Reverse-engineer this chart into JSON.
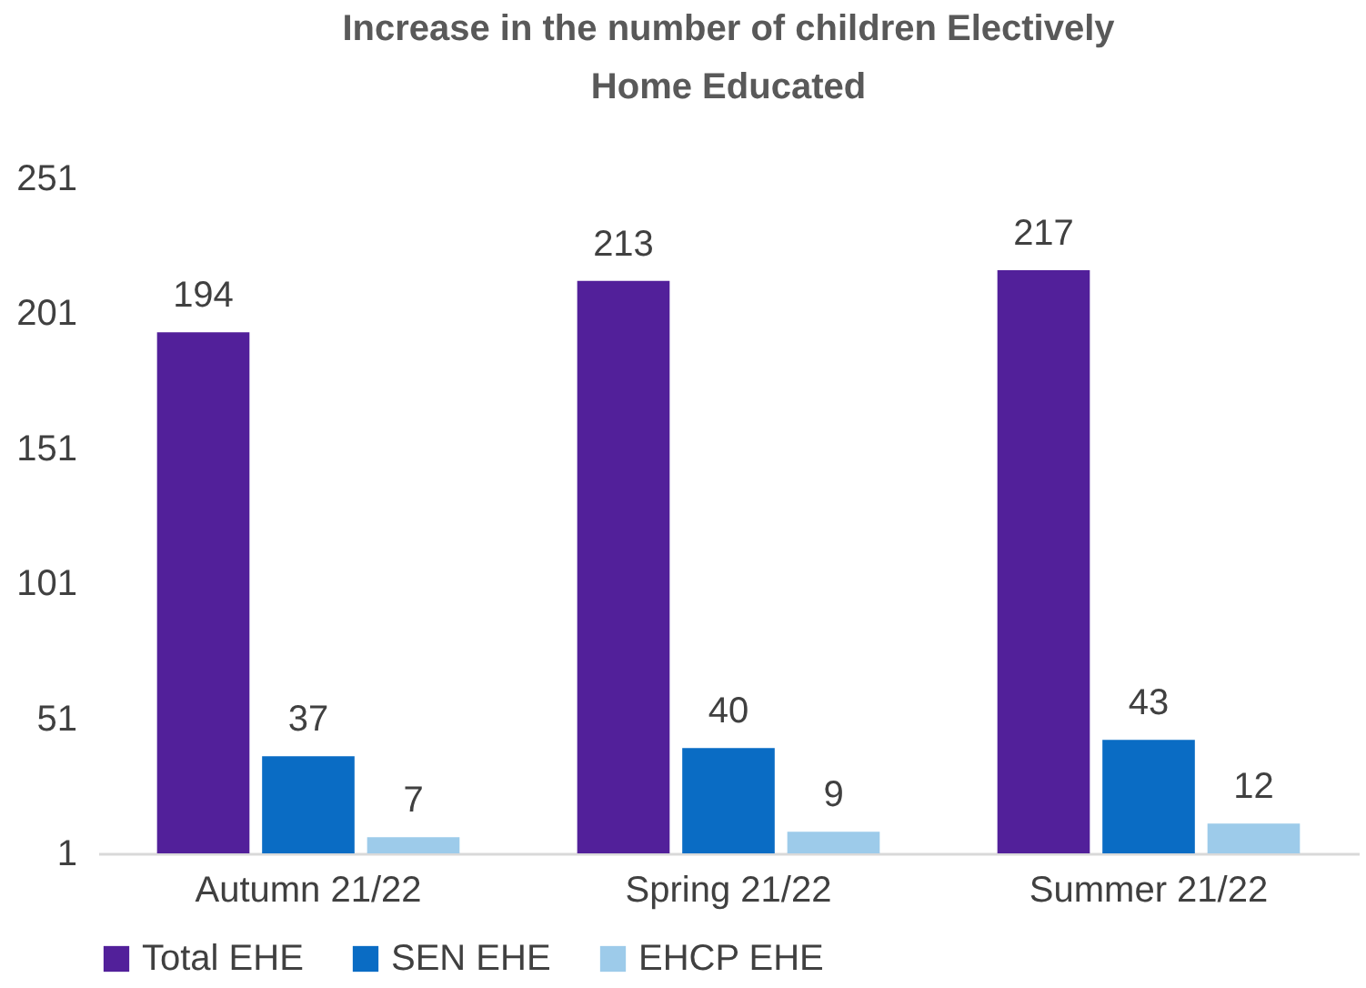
{
  "chart_data": {
    "type": "bar",
    "title": [
      "Increase in the number of children Electively",
      "Home Educated"
    ],
    "categories": [
      "Autumn 21/22",
      "Spring 21/22",
      "Summer 21/22"
    ],
    "series": [
      {
        "name": "Total EHE",
        "color": "#52209a",
        "values": [
          194,
          213,
          217
        ]
      },
      {
        "name": "SEN EHE",
        "color": "#0a6cc4",
        "values": [
          37,
          40,
          43
        ]
      },
      {
        "name": "EHCP EHE",
        "color": "#9dcbea",
        "values": [
          7,
          9,
          12
        ]
      }
    ],
    "ylim": [
      1,
      251
    ],
    "yticks": [
      1,
      51,
      101,
      151,
      201,
      251
    ],
    "grid": false,
    "legend": "bottom",
    "data_labels": true
  }
}
